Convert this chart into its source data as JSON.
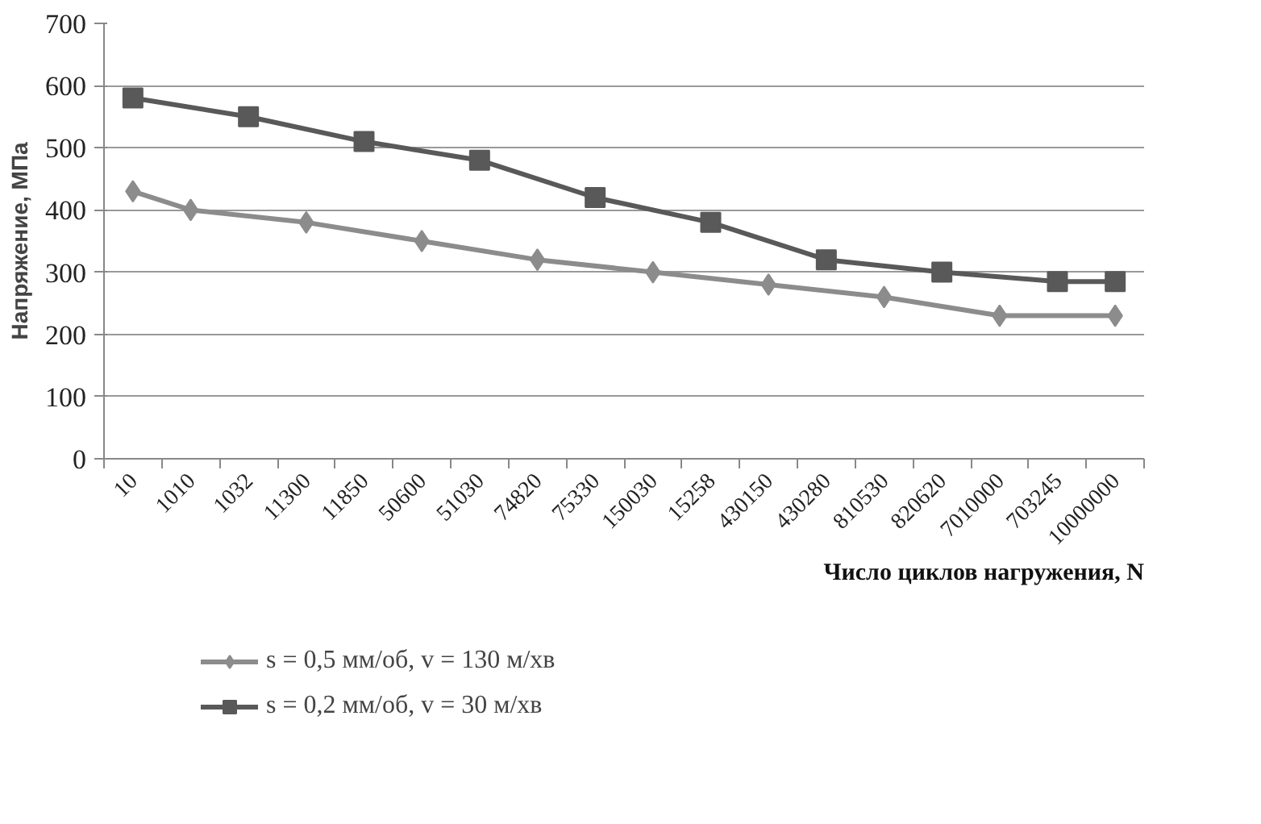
{
  "chart_data": {
    "type": "line",
    "ylabel": "Напряжение, МПа",
    "xlabel": "Число циклов нагружения, N",
    "categories": [
      "10",
      "1010",
      "1032",
      "11300",
      "11850",
      "50600",
      "51030",
      "74820",
      "75330",
      "150030",
      "15258",
      "430150",
      "430280",
      "810530",
      "820620",
      "7010000",
      "703245",
      "10000000"
    ],
    "series": [
      {
        "name": "s = 0,5 мм/об, v = 130 м/хв",
        "color": "#8c8c8c",
        "marker": "diamond",
        "values": [
          430,
          400,
          null,
          380,
          null,
          350,
          null,
          320,
          null,
          300,
          null,
          280,
          null,
          260,
          null,
          230,
          null,
          230
        ]
      },
      {
        "name": "s = 0,2 мм/об, v = 30 м/хв",
        "color": "#595959",
        "marker": "square",
        "values": [
          580,
          null,
          550,
          null,
          510,
          null,
          480,
          null,
          420,
          null,
          380,
          null,
          320,
          null,
          300,
          null,
          285,
          285
        ]
      }
    ],
    "ylim": [
      0,
      700
    ],
    "yticks": [
      0,
      100,
      200,
      300,
      400,
      500,
      600,
      700
    ],
    "grid": "y",
    "legend": "bottom left"
  }
}
